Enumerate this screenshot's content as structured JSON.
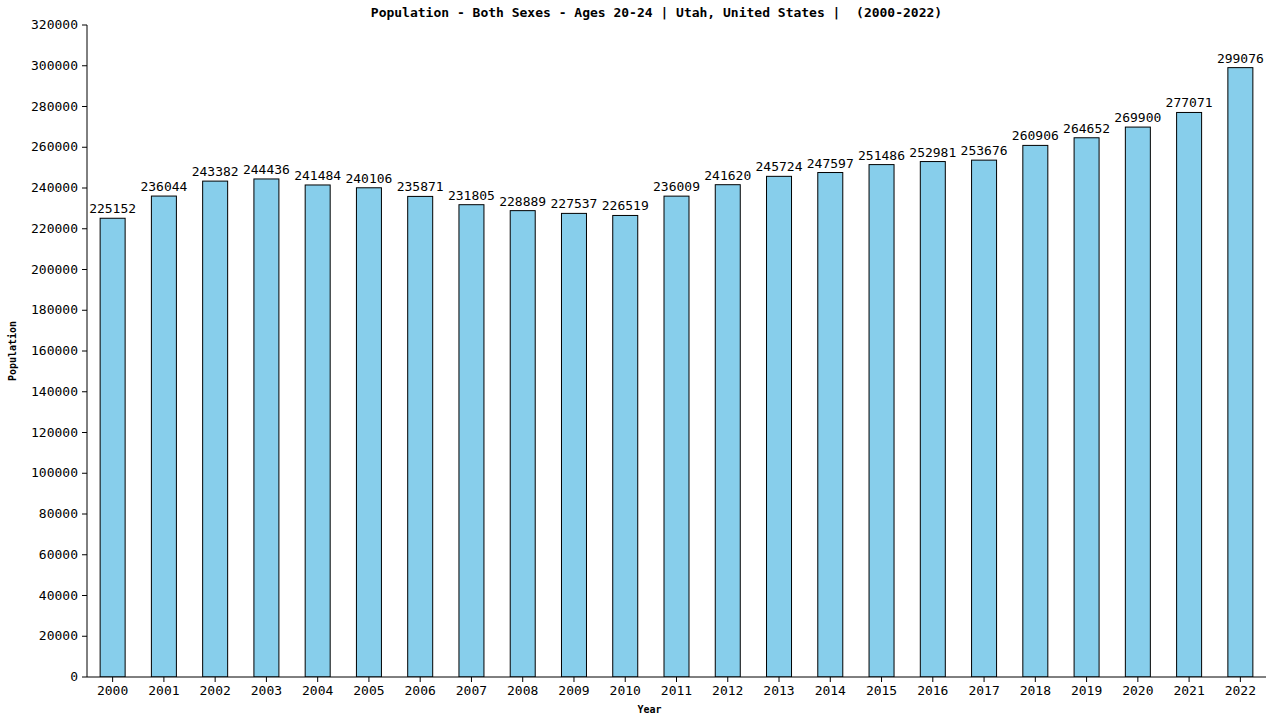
{
  "chart_data": {
    "type": "bar",
    "title": "Population - Both Sexes - Ages 20-24 | Utah, United States |  (2000-2022)",
    "x_label": "Year",
    "y_label": "Population",
    "categories": [
      "2000",
      "2001",
      "2002",
      "2003",
      "2004",
      "2005",
      "2006",
      "2007",
      "2008",
      "2009",
      "2010",
      "2011",
      "2012",
      "2013",
      "2014",
      "2015",
      "2016",
      "2017",
      "2018",
      "2019",
      "2020",
      "2021",
      "2022"
    ],
    "values": [
      225152,
      236044,
      243382,
      244436,
      241484,
      240106,
      235871,
      231805,
      228889,
      227537,
      226519,
      236009,
      241620,
      245724,
      247597,
      251486,
      252981,
      253676,
      260906,
      264652,
      269900,
      277071,
      299076
    ],
    "color": "#87ceeb",
    "ylim": [
      0,
      320000
    ],
    "yticks": [
      0,
      20000,
      40000,
      60000,
      80000,
      100000,
      120000,
      140000,
      160000,
      180000,
      200000,
      220000,
      240000,
      260000,
      280000,
      300000,
      320000
    ],
    "grid": false,
    "data_labels": true
  }
}
